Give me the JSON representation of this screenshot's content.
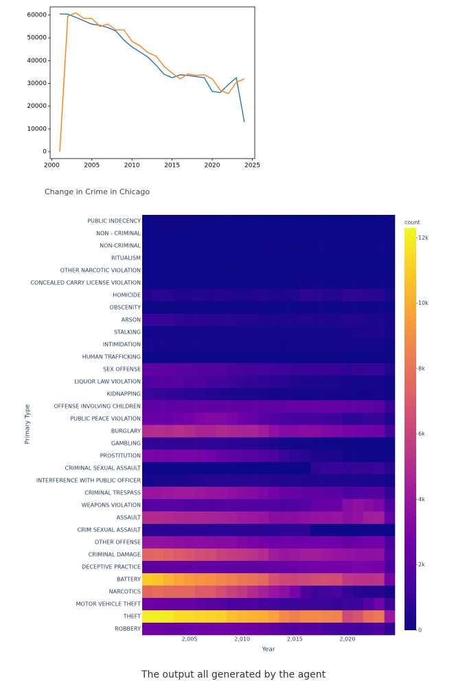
{
  "chart_data": [
    {
      "type": "line",
      "x": [
        2001,
        2002,
        2003,
        2004,
        2005,
        2006,
        2007,
        2008,
        2009,
        2010,
        2011,
        2012,
        2013,
        2014,
        2015,
        2016,
        2017,
        2018,
        2019,
        2020,
        2021,
        2022,
        2023,
        2024
      ],
      "series": [
        {
          "color": "#1f77b4",
          "values": [
            60500,
            60400,
            59000,
            57500,
            56000,
            55500,
            54500,
            53000,
            49000,
            46000,
            43800,
            41500,
            38000,
            34000,
            32500,
            33800,
            33500,
            33000,
            32500,
            26500,
            26000,
            29500,
            32500,
            13000
          ]
        },
        {
          "color": "#ff7f0e",
          "values": [
            0,
            59500,
            61000,
            58500,
            58500,
            55000,
            56000,
            53500,
            53500,
            48500,
            46500,
            43500,
            42000,
            37500,
            34500,
            32000,
            34200,
            33500,
            33800,
            32000,
            27000,
            25500,
            30500,
            32000
          ]
        }
      ],
      "xlim": [
        1999.8,
        2025.3
      ],
      "xticks": [
        2000,
        2005,
        2010,
        2015,
        2020,
        2025
      ],
      "ylim": [
        -3000,
        63600
      ],
      "yticks": [
        0,
        10000,
        20000,
        30000,
        40000,
        50000,
        60000
      ]
    },
    {
      "type": "heatmap",
      "title": "Change in Crime in Chicago",
      "x_label": "Year",
      "y_label": "Primary Type",
      "colorbar_title": "count",
      "x": [
        2001,
        2002,
        2003,
        2004,
        2005,
        2006,
        2007,
        2008,
        2009,
        2010,
        2011,
        2012,
        2013,
        2014,
        2015,
        2016,
        2017,
        2018,
        2019,
        2020,
        2021,
        2022,
        2023,
        2024
      ],
      "xlim": [
        2000.5,
        2024.5
      ],
      "xticks": [
        {
          "value": 2005,
          "label": "2,005"
        },
        {
          "value": 2010,
          "label": "2,010"
        },
        {
          "value": 2015,
          "label": "2,015"
        },
        {
          "value": 2020,
          "label": "2,020"
        }
      ],
      "categories": [
        "PUBLIC INDECENCY",
        "NON - CRIMINAL",
        "NON-CRIMINAL",
        "RITUALISM",
        "OTHER NARCOTIC VIOLATION",
        "CONCEALED CARRY LICENSE VIOLATION",
        "HOMICIDE",
        "OBSCENITY",
        "ARSON",
        "STALKING",
        "INTIMIDATION",
        "HUMAN TRAFFICKING",
        "SEX OFFENSE",
        "LIQUOR LAW VIOLATION",
        "KIDNAPPING",
        "OFFENSE INVOLVING CHILDREN",
        "PUBLIC PEACE VIOLATION",
        "BURGLARY",
        "GAMBLING",
        "PROSTITUTION",
        "CRIMINAL SEXUAL ASSAULT",
        "INTERFERENCE WITH PUBLIC OFFICER",
        "CRIMINAL TRESPASS",
        "WEAPONS VIOLATION",
        "ASSAULT",
        "CRIM SEXUAL ASSAULT",
        "OTHER OFFENSE",
        "CRIMINAL DAMAGE",
        "DECEPTIVE PRACTICE",
        "BATTERY",
        "NARCOTICS",
        "MOTOR VEHICLE THEFT",
        "THEFT",
        "ROBBERY"
      ],
      "z": [
        [
          10,
          12,
          12,
          14,
          12,
          10,
          12,
          10,
          10,
          8,
          8,
          10,
          8,
          6,
          6,
          8,
          6,
          6,
          4,
          2,
          4,
          4,
          6,
          4
        ],
        [
          0,
          0,
          0,
          0,
          0,
          0,
          0,
          0,
          0,
          0,
          0,
          20,
          10,
          6,
          8,
          10,
          8,
          6,
          4,
          2,
          2,
          2,
          2,
          2
        ],
        [
          0,
          0,
          0,
          0,
          0,
          0,
          0,
          0,
          0,
          0,
          0,
          0,
          40,
          30,
          20,
          30,
          40,
          50,
          60,
          30,
          40,
          50,
          60,
          40
        ],
        [
          10,
          6,
          4,
          2,
          2,
          0,
          2,
          0,
          0,
          0,
          0,
          0,
          0,
          0,
          0,
          0,
          0,
          0,
          0,
          0,
          0,
          0,
          0,
          0
        ],
        [
          10,
          8,
          6,
          8,
          10,
          8,
          8,
          10,
          12,
          10,
          8,
          10,
          10,
          8,
          6,
          6,
          4,
          4,
          6,
          4,
          4,
          2,
          2,
          2
        ],
        [
          0,
          0,
          0,
          0,
          0,
          0,
          0,
          0,
          0,
          0,
          0,
          0,
          0,
          0,
          20,
          40,
          60,
          90,
          140,
          100,
          90,
          80,
          70,
          50
        ],
        [
          450,
          600,
          600,
          450,
          450,
          470,
          450,
          510,
          460,
          440,
          440,
          510,
          420,
          420,
          490,
          780,
          670,
          590,
          500,
          790,
          810,
          700,
          620,
          290
        ],
        [
          10,
          12,
          14,
          16,
          20,
          18,
          20,
          20,
          24,
          30,
          28,
          30,
          30,
          40,
          40,
          60,
          80,
          80,
          90,
          80,
          80,
          70,
          60,
          30
        ],
        [
          1000,
          1000,
          950,
          800,
          700,
          700,
          650,
          650,
          600,
          520,
          500,
          460,
          370,
          390,
          450,
          510,
          450,
          370,
          380,
          590,
          520,
          440,
          430,
          260
        ],
        [
          140,
          200,
          190,
          190,
          190,
          200,
          210,
          190,
          170,
          190,
          200,
          200,
          160,
          180,
          190,
          190,
          190,
          200,
          220,
          210,
          310,
          400,
          420,
          230
        ],
        [
          300,
          250,
          230,
          230,
          240,
          210,
          200,
          180,
          150,
          180,
          160,
          150,
          150,
          140,
          160,
          160,
          170,
          180,
          170,
          170,
          150,
          160,
          160,
          100
        ],
        [
          0,
          0,
          0,
          0,
          0,
          0,
          0,
          0,
          0,
          0,
          0,
          2,
          10,
          10,
          10,
          10,
          10,
          12,
          14,
          10,
          10,
          10,
          12,
          6
        ],
        [
          2200,
          2100,
          2100,
          2000,
          1900,
          1800,
          1800,
          1700,
          1500,
          1400,
          1300,
          1300,
          1200,
          1100,
          1000,
          1000,
          1000,
          1000,
          1000,
          800,
          900,
          1000,
          1000,
          500
        ],
        [
          1600,
          1800,
          1800,
          1900,
          1600,
          1600,
          1400,
          1300,
          1200,
          1000,
          900,
          800,
          700,
          600,
          500,
          400,
          300,
          300,
          300,
          200,
          200,
          200,
          200,
          100
        ],
        [
          1100,
          1000,
          900,
          800,
          700,
          600,
          500,
          400,
          300,
          300,
          300,
          250,
          200,
          200,
          200,
          190,
          190,
          170,
          170,
          150,
          140,
          140,
          150,
          80
        ],
        [
          2200,
          2200,
          2200,
          2200,
          2200,
          2200,
          2200,
          2200,
          2200,
          2200,
          2200,
          2200,
          2200,
          2200,
          2300,
          2300,
          2300,
          2300,
          2300,
          2200,
          2200,
          2100,
          2000,
          1000
        ],
        [
          2500,
          2500,
          2500,
          2600,
          2800,
          3100,
          3200,
          3200,
          3000,
          2600,
          2300,
          2000,
          1700,
          1500,
          1400,
          1400,
          1300,
          1200,
          1200,
          800,
          800,
          1000,
          1000,
          500
        ],
        [
          5000,
          5100,
          5000,
          5200,
          5000,
          4700,
          4700,
          4900,
          4800,
          4600,
          4600,
          4300,
          3700,
          3300,
          3300,
          3500,
          3400,
          3200,
          3100,
          2900,
          2800,
          2700,
          2600,
          1300
        ],
        [
          900,
          900,
          900,
          900,
          900,
          900,
          800,
          800,
          700,
          700,
          600,
          500,
          300,
          200,
          150,
          150,
          100,
          50,
          50,
          20,
          10,
          10,
          10,
          5
        ],
        [
          3000,
          2900,
          2900,
          3000,
          3000,
          2900,
          2700,
          2400,
          2200,
          2000,
          1900,
          1800,
          1500,
          1100,
          800,
          600,
          400,
          300,
          300,
          100,
          70,
          50,
          30,
          20
        ],
        [
          0,
          0,
          0,
          0,
          0,
          0,
          0,
          0,
          0,
          0,
          0,
          0,
          0,
          0,
          0,
          0,
          800,
          1000,
          1050,
          900,
          950,
          1000,
          1100,
          600
        ],
        [
          200,
          300,
          300,
          300,
          400,
          500,
          600,
          600,
          600,
          600,
          600,
          600,
          500,
          500,
          500,
          400,
          400,
          400,
          400,
          300,
          300,
          300,
          300,
          200
        ],
        [
          4000,
          4000,
          4100,
          4200,
          4200,
          4100,
          3900,
          3800,
          3700,
          3500,
          3300,
          3100,
          2800,
          2500,
          2300,
          2200,
          2100,
          2000,
          2000,
          1600,
          1700,
          1800,
          1800,
          900
        ],
        [
          1800,
          1900,
          1900,
          1900,
          1700,
          1700,
          1600,
          1700,
          1800,
          1800,
          1700,
          1800,
          1700,
          1600,
          1700,
          1900,
          2300,
          2500,
          2500,
          3400,
          3700,
          3400,
          3100,
          1600
        ],
        [
          5000,
          5000,
          4900,
          4800,
          4700,
          4700,
          4600,
          4500,
          4400,
          4200,
          4100,
          3900,
          3500,
          3500,
          3500,
          3700,
          3800,
          3800,
          3900,
          3600,
          3800,
          4300,
          4400,
          2300
        ],
        [
          700,
          700,
          700,
          700,
          700,
          700,
          700,
          700,
          700,
          700,
          700,
          700,
          700,
          800,
          800,
          800,
          0,
          0,
          0,
          0,
          0,
          0,
          0,
          0
        ],
        [
          3800,
          3800,
          3700,
          3600,
          3500,
          3500,
          3400,
          3300,
          3300,
          3100,
          2900,
          2800,
          2600,
          2600,
          2600,
          2600,
          2700,
          2700,
          2600,
          2300,
          2500,
          2700,
          2700,
          1500
        ],
        [
          7400,
          7500,
          7300,
          7000,
          6800,
          6500,
          6400,
          6000,
          5700,
          5500,
          5300,
          5000,
          4300,
          4000,
          4100,
          4300,
          4300,
          4100,
          3900,
          3800,
          3700,
          3700,
          3700,
          1900
        ],
        [
          2000,
          2000,
          2200,
          2200,
          2200,
          2200,
          2200,
          2200,
          2100,
          2100,
          2100,
          2200,
          2300,
          2400,
          2500,
          2600,
          2700,
          2800,
          2800,
          2800,
          3000,
          2900,
          2800,
          1500
        ],
        [
          11000,
          10700,
          10200,
          9700,
          9300,
          9100,
          9000,
          8700,
          8400,
          8100,
          7900,
          7600,
          6600,
          6200,
          6100,
          6200,
          6400,
          6500,
          6400,
          5500,
          5300,
          5300,
          5400,
          2800
        ],
        [
          7500,
          7700,
          7500,
          7500,
          7500,
          7000,
          7000,
          6500,
          6000,
          5600,
          5000,
          4500,
          4000,
          3600,
          2900,
          1600,
          1200,
          1300,
          1500,
          900,
          600,
          500,
          500,
          250
        ],
        [
          2600,
          2500,
          2300,
          2300,
          2300,
          2100,
          1900,
          1800,
          1500,
          1600,
          1600,
          1400,
          1300,
          1100,
          1100,
          1200,
          1200,
          1100,
          1000,
          1100,
          1100,
          1800,
          2700,
          1200
        ],
        [
          12000,
          12000,
          11900,
          11500,
          11400,
          11300,
          11200,
          11100,
          10600,
          10300,
          10200,
          10000,
          9600,
          8800,
          8400,
          8800,
          8800,
          8700,
          8600,
          6300,
          6700,
          7800,
          8200,
          4100
        ],
        [
          2600,
          2600,
          2500,
          2500,
          2600,
          2600,
          2600,
          2700,
          2700,
          2600,
          2500,
          2400,
          2100,
          1800,
          1600,
          1800,
          1800,
          1500,
          1400,
          1300,
          1200,
          1400,
          1600,
          900
        ]
      ],
      "zlim": [
        0,
        12300
      ],
      "zticks": [
        0,
        {
          "value": 2000,
          "label": "2k"
        },
        {
          "value": 4000,
          "label": "4k"
        },
        {
          "value": 6000,
          "label": "6k"
        },
        {
          "value": 8000,
          "label": "8k"
        },
        {
          "value": 10000,
          "label": "10k"
        },
        {
          "value": 12000,
          "label": "12k"
        }
      ],
      "colorscale": [
        "#0d0887",
        "#46039f",
        "#7201a8",
        "#9c179e",
        "#bd3786",
        "#d8576b",
        "#ed7953",
        "#fb9f3a",
        "#fdca26",
        "#f0f921"
      ]
    }
  ],
  "caption": "The output all generated by the agent"
}
